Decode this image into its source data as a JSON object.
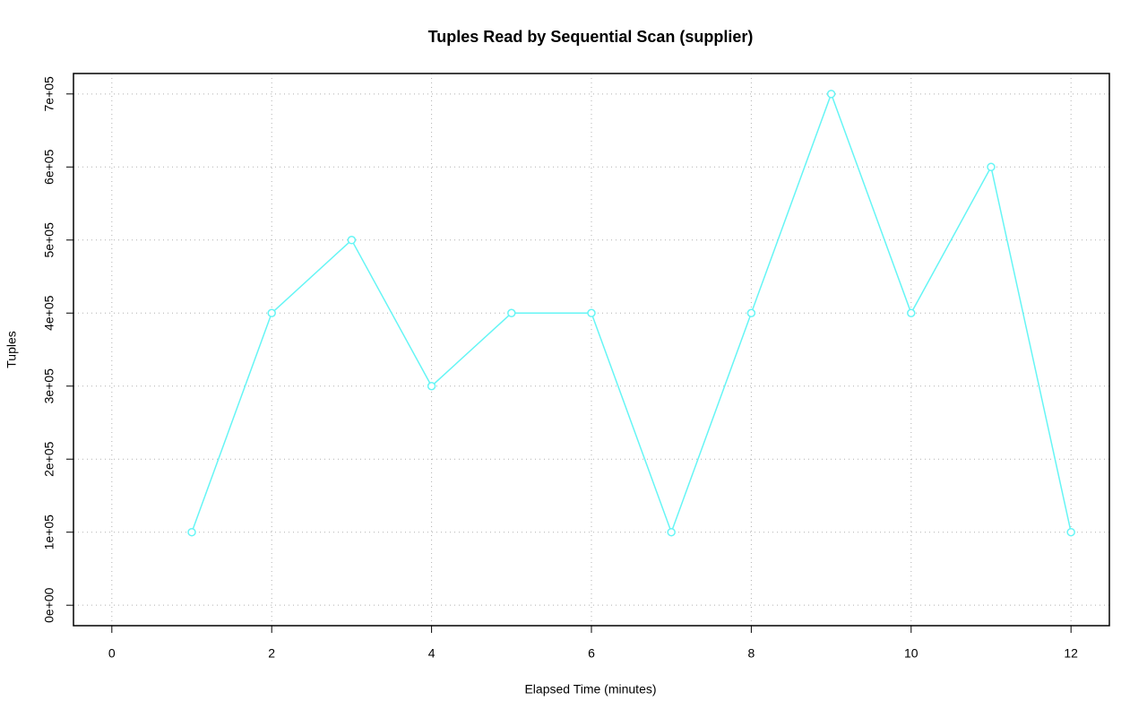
{
  "chart_data": {
    "type": "line",
    "title": "Tuples Read by Sequential Scan (supplier)",
    "x_label": "Elapsed Time (minutes)",
    "y_label": "Tuples",
    "x": [
      1,
      2,
      3,
      4,
      5,
      6,
      7,
      8,
      9,
      10,
      11,
      12
    ],
    "series": [
      {
        "color": "#66f5f5",
        "values": [
          100000,
          400000,
          500000,
          300000,
          400000,
          400000,
          100000,
          400000,
          700000,
          400000,
          600000,
          100000
        ]
      }
    ],
    "xlim": [
      -0.48,
      12.48
    ],
    "xticks": [
      0,
      2,
      4,
      6,
      8,
      10,
      12
    ],
    "ylim": [
      -28000,
      728000
    ],
    "yticks": [
      {
        "value": 0,
        "label": "0e+00"
      },
      {
        "value": 100000,
        "label": "1e+05"
      },
      {
        "value": 200000,
        "label": "2e+05"
      },
      {
        "value": 300000,
        "label": "3e+05"
      },
      {
        "value": 400000,
        "label": "4e+05"
      },
      {
        "value": 500000,
        "label": "5e+05"
      },
      {
        "value": 600000,
        "label": "6e+05"
      },
      {
        "value": 700000,
        "label": "7e+05"
      }
    ],
    "grid": true
  }
}
